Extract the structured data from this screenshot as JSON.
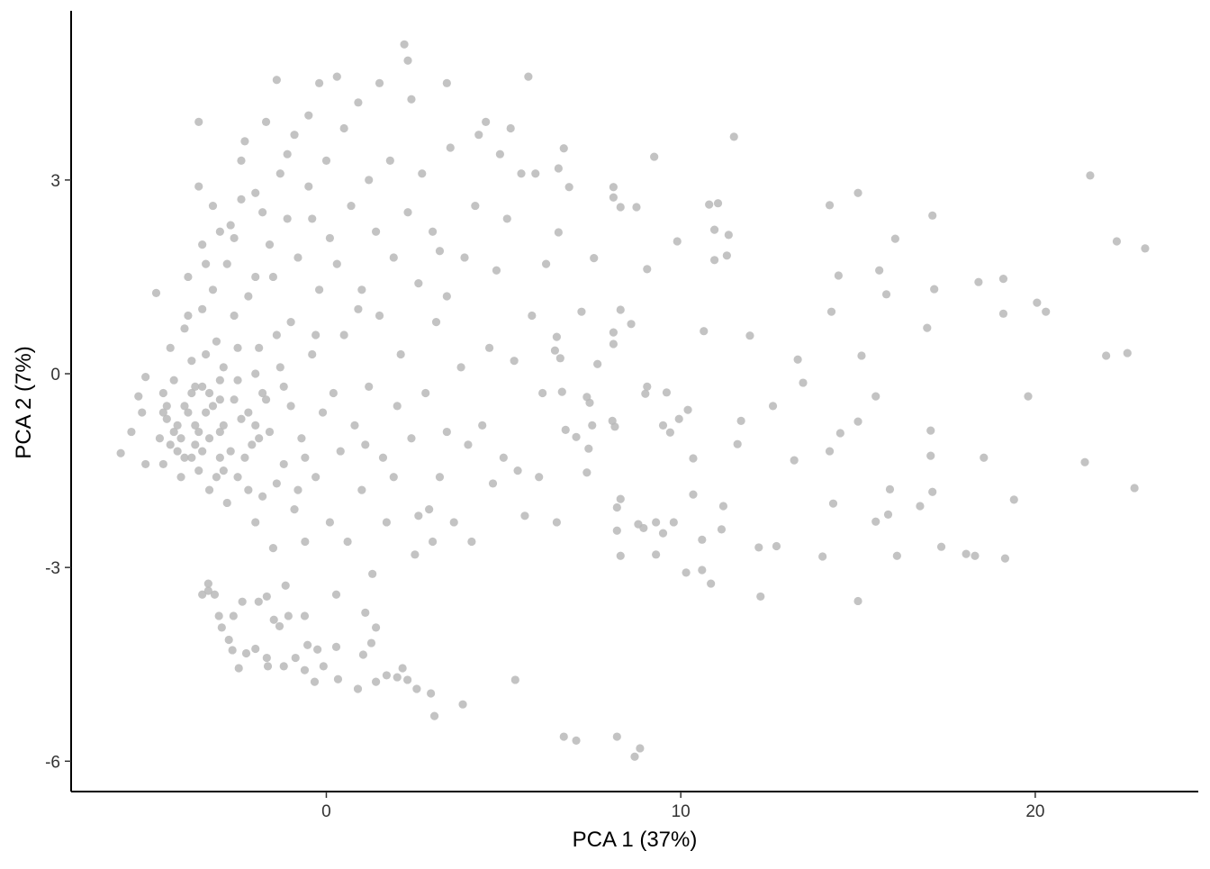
{
  "chart_data": {
    "type": "scatter",
    "x_label": "PCA 1 (37%)",
    "y_label": "PCA 2 (7%)",
    "color": "#b8b8b8",
    "xlim": [
      -7.2,
      24.6
    ],
    "xticks": [
      0,
      10,
      20
    ],
    "ylim": [
      -6.47,
      5.62
    ],
    "yticks": [
      -6,
      -3,
      0,
      3
    ],
    "x": [
      21.55,
      22.3,
      23.1,
      22.0,
      22.6,
      21.4,
      22.8,
      19.8,
      19.4,
      19.15,
      19.1,
      19.1,
      20.05,
      20.3,
      18.4,
      18.55,
      18.05,
      18.3,
      17.1,
      17.15,
      16.95,
      17.05,
      17.05,
      17.1,
      16.75,
      17.35,
      16.05,
      15.6,
      15.8,
      15.5,
      15.9,
      15.85,
      15.5,
      16.1,
      15.0,
      15.1,
      15.0,
      15.0,
      14.2,
      14.45,
      14.25,
      14.5,
      14.2,
      14.3,
      14.0,
      13.3,
      13.45,
      13.2,
      12.6,
      12.7,
      12.2,
      12.25,
      11.95,
      11.5,
      11.7,
      11.6,
      11.05,
      10.8,
      10.95,
      11.35,
      11.3,
      10.95,
      10.65,
      11.2,
      11.15,
      10.85,
      10.6,
      10.15,
      10.6,
      10.35,
      10.35,
      10.2,
      9.95,
      9.6,
      9.5,
      9.7,
      9.05,
      9.0,
      9.9,
      9.25,
      9.05,
      8.6,
      8.3,
      8.1,
      8.1,
      7.65,
      8.1,
      8.1,
      8.3,
      8.75,
      7.55,
      7.2,
      7.35,
      7.43,
      7.5,
      8.07,
      8.14,
      7.4,
      6.85,
      6.7,
      6.55,
      6.55,
      6.5,
      6.45,
      6.6,
      6.65,
      6.75,
      7.05,
      7.35,
      8.3,
      8.2,
      8.2,
      8.8,
      8.95,
      9.3,
      9.5,
      9.8,
      9.3,
      8.3,
      6.7,
      7.05,
      8.2,
      8.85,
      8.7,
      5.33,
      3.85,
      3.05,
      2.95,
      2.55,
      2.15,
      2.0,
      2.29,
      1.4,
      0.89,
      0.33,
      -0.33,
      0.28,
      -0.25,
      -0.53,
      -0.61,
      -1.2,
      -1.65,
      -1.68,
      -2.47,
      -2.65,
      -2.95,
      -3.33,
      -3.33,
      -3.03,
      -2.62,
      -2.37,
      -1.91,
      -1.68,
      -1.48,
      -1.15,
      -1.07,
      0.28,
      -0.61,
      -1.32,
      1.27,
      1.4,
      1.04,
      -0.87,
      -2.26,
      -2.75,
      -3.5,
      -3.15,
      -2.0,
      -0.08,
      1.7,
      -5.8,
      -5.5,
      -5.3,
      -5.1,
      -5.2,
      -5.1,
      -4.8,
      -4.6,
      -4.5,
      -4.7,
      -4.6,
      -4.4,
      -4.3,
      -4.3,
      -4.2,
      -4.0,
      -4.0,
      -4.1,
      -3.9,
      -3.8,
      -3.8,
      -3.7,
      -3.7,
      -3.6,
      -3.5,
      -3.5,
      -3.5,
      -3.4,
      -3.3,
      -3.3,
      -3.6,
      -3.6,
      -3.2,
      -3.1,
      -3.0,
      -3.0,
      -2.9,
      -2.8,
      -2.8,
      -2.7,
      -2.6,
      -2.5,
      -2.5,
      -2.4,
      -2.3,
      -2.2,
      -2.2,
      -2.1,
      -2.0,
      -2.0,
      -1.9,
      -1.8,
      -1.8,
      -1.7,
      -1.6,
      -1.6,
      -1.5,
      -1.5,
      -1.4,
      -1.3,
      -1.3,
      -1.2,
      -1.1,
      -1.0,
      -1.0,
      -0.9,
      -0.9,
      -0.8,
      -0.7,
      -0.6,
      -0.5,
      -0.5,
      -0.4,
      -0.3,
      -0.2,
      -0.2,
      -0.1,
      0.0,
      0.1,
      0.1,
      0.2,
      0.3,
      0.3,
      0.4,
      0.5,
      0.5,
      0.6,
      0.7,
      0.8,
      0.9,
      1.0,
      1.0,
      1.2,
      1.2,
      1.3,
      1.4,
      1.5,
      1.5,
      1.6,
      1.7,
      1.8,
      1.9,
      2.0,
      2.1,
      2.2,
      2.3,
      2.4,
      2.3,
      2.4,
      2.5,
      2.6,
      2.7,
      2.8,
      2.9,
      3.0,
      3.1,
      3.2,
      3.2,
      3.4,
      3.4,
      3.5,
      3.6,
      3.8,
      3.9,
      4.0,
      4.1,
      4.2,
      4.4,
      4.5,
      4.6,
      4.7,
      4.8,
      4.9,
      5.0,
      5.1,
      5.3,
      5.4,
      5.5,
      5.6,
      5.7,
      5.8,
      5.9,
      6.0,
      6.1,
      6.2,
      6.5,
      5.2,
      4.3,
      3.4,
      2.6,
      1.9,
      1.1,
      3.0,
      0.9,
      -4.5,
      -4.2,
      -3.9,
      -3.6,
      -3.3,
      -3.0,
      -2.7,
      -2.4,
      -4.1,
      -3.8,
      -3.5,
      -3.2,
      -2.9,
      -2.6,
      -4.4,
      -3.1,
      -2.3,
      -2.0,
      -1.7,
      -1.4,
      -3.4,
      -2.9,
      -4.6,
      -3.7,
      -2.5,
      -1.9,
      -4.0,
      -3.0,
      -2.2,
      -3.9,
      -3.2,
      -2.6,
      -2.0,
      -1.2,
      -0.6,
      -0.3,
      -0.8,
      -1.8,
      -2.4,
      -1.1,
      -0.4,
      -1.4,
      -3.0,
      -3.4,
      -2.0,
      1.1
    ],
    "values": [
      3.07,
      2.05,
      1.94,
      0.28,
      0.32,
      -1.37,
      -1.77,
      -0.35,
      -1.95,
      -2.86,
      1.47,
      0.93,
      1.1,
      0.96,
      1.42,
      -1.3,
      -2.79,
      -2.82,
      2.45,
      1.31,
      0.71,
      -0.88,
      -1.27,
      -1.83,
      -2.05,
      -2.68,
      2.09,
      1.6,
      1.23,
      -0.35,
      -1.79,
      -2.18,
      -2.29,
      -2.82,
      2.8,
      0.28,
      -0.74,
      -3.52,
      2.61,
      1.52,
      0.96,
      -0.92,
      -1.2,
      -2.01,
      -2.83,
      0.22,
      -0.14,
      -1.34,
      -0.5,
      -2.67,
      -2.69,
      -3.45,
      0.59,
      3.67,
      -0.73,
      -1.09,
      2.64,
      2.62,
      2.23,
      2.15,
      1.83,
      1.76,
      0.66,
      -2.05,
      -2.41,
      -3.25,
      -3.04,
      -3.08,
      -2.57,
      -1.87,
      -1.31,
      -0.56,
      -0.7,
      -0.29,
      -0.8,
      -0.91,
      -0.2,
      -0.31,
      2.05,
      3.36,
      1.62,
      0.77,
      0.99,
      0.64,
      0.46,
      0.15,
      2.89,
      2.73,
      2.58,
      2.58,
      1.79,
      0.96,
      -0.36,
      -0.45,
      -0.8,
      -0.73,
      -0.82,
      -1.16,
      2.89,
      3.49,
      3.18,
      2.19,
      0.57,
      0.36,
      0.24,
      -0.28,
      -0.87,
      -0.98,
      -1.53,
      -1.94,
      -2.07,
      -2.43,
      -2.33,
      -2.39,
      -2.3,
      -2.47,
      -2.3,
      -2.8,
      -2.82,
      -5.62,
      -5.68,
      -5.62,
      -5.8,
      -5.93,
      -4.74,
      -5.12,
      -5.3,
      -4.95,
      -4.88,
      -4.56,
      -4.7,
      -4.74,
      -4.77,
      -4.88,
      -4.73,
      -4.77,
      -4.23,
      -4.27,
      -4.2,
      -4.59,
      -4.53,
      -4.53,
      -4.4,
      -4.56,
      -4.28,
      -3.93,
      -3.36,
      -3.25,
      -3.75,
      -3.75,
      -3.53,
      -3.53,
      -3.45,
      -3.81,
      -3.28,
      -3.75,
      -3.42,
      -3.75,
      -3.91,
      -4.17,
      -3.93,
      -4.35,
      -4.4,
      -4.33,
      -4.12,
      -3.42,
      -3.42,
      -4.26,
      -4.53,
      -4.67,
      -1.23,
      -0.9,
      -0.35,
      -0.05,
      -0.6,
      -1.4,
      1.25,
      -0.3,
      -0.7,
      -1.0,
      -1.4,
      0.4,
      -0.1,
      -0.9,
      -1.2,
      0.7,
      -0.5,
      -1.6,
      1.5,
      0.2,
      -0.3,
      -0.8,
      -1.1,
      -1.5,
      2.0,
      1.0,
      -0.2,
      -0.6,
      -1.0,
      -1.8,
      3.9,
      2.9,
      2.6,
      0.5,
      -0.4,
      -1.3,
      -0.8,
      1.7,
      -2.0,
      2.3,
      0.9,
      -0.1,
      -1.6,
      3.3,
      3.6,
      1.2,
      -0.6,
      -1.1,
      -2.3,
      2.8,
      0.4,
      -0.3,
      -1.9,
      3.9,
      2.0,
      -0.9,
      1.5,
      -2.7,
      4.55,
      3.1,
      0.1,
      -1.4,
      2.4,
      0.8,
      -0.5,
      -2.1,
      3.7,
      1.8,
      -1.0,
      -2.6,
      4.0,
      2.9,
      0.3,
      -1.6,
      1.3,
      4.5,
      -0.6,
      3.3,
      2.1,
      -2.3,
      -0.3,
      4.6,
      1.7,
      -1.2,
      3.8,
      0.6,
      -2.6,
      2.6,
      -0.8,
      4.2,
      1.3,
      -1.8,
      3.0,
      -0.2,
      -3.1,
      2.2,
      4.5,
      0.9,
      -1.3,
      -2.3,
      3.3,
      1.8,
      -0.5,
      0.3,
      5.1,
      4.85,
      4.25,
      2.5,
      -1.0,
      -2.8,
      1.4,
      3.1,
      -0.3,
      -2.1,
      2.2,
      0.8,
      -1.6,
      1.9,
      4.5,
      -0.9,
      3.5,
      -2.3,
      0.1,
      1.8,
      -1.1,
      -2.6,
      2.6,
      -0.8,
      3.9,
      0.4,
      -1.7,
      1.6,
      3.4,
      -1.3,
      2.4,
      0.2,
      -1.5,
      3.1,
      -2.2,
      4.6,
      0.9,
      3.1,
      -1.6,
      -0.3,
      1.7,
      -2.3,
      3.8,
      3.7,
      1.2,
      -2.2,
      -1.6,
      -3.7,
      -2.6,
      1.0,
      -0.5,
      -0.8,
      -0.6,
      -0.9,
      -0.3,
      -0.9,
      -1.2,
      -0.7,
      -1.0,
      -1.3,
      -1.2,
      -0.5,
      -1.5,
      -0.4,
      -1.1,
      -1.6,
      -1.3,
      -0.8,
      -0.4,
      -1.7,
      0.3,
      0.1,
      -0.6,
      -0.2,
      0.4,
      -1.0,
      -1.3,
      -0.1,
      -1.8,
      0.9,
      1.3,
      2.1,
      1.5,
      -0.2,
      -1.3,
      0.6,
      -1.8,
      2.5,
      2.7,
      3.4,
      2.4,
      0.6,
      2.2,
      1.7,
      0.0,
      -1.1
    ]
  }
}
